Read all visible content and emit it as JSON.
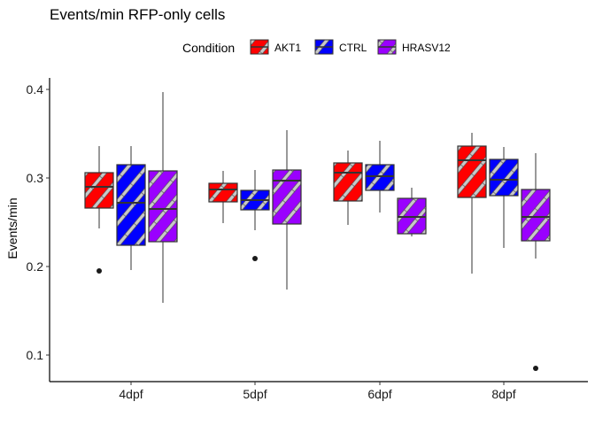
{
  "chart_data": {
    "type": "boxplot",
    "title": "Events/min RFP-only cells",
    "xlabel": "",
    "ylabel": "Events/min",
    "ylim": [
      0.07,
      0.41
    ],
    "yticks": [
      0.1,
      0.2,
      0.3,
      0.4
    ],
    "categories": [
      "4dpf",
      "5dpf",
      "6dpf",
      "8dpf"
    ],
    "legend": {
      "title": "Condition",
      "position": "top"
    },
    "series": [
      {
        "name": "AKT1",
        "color": "#FF0000",
        "boxes": [
          {
            "min": 0.243,
            "q1": 0.266,
            "median": 0.29,
            "q3": 0.306,
            "max": 0.336,
            "outliers": [
              0.195
            ]
          },
          {
            "min": 0.249,
            "q1": 0.273,
            "median": 0.287,
            "q3": 0.294,
            "max": 0.308,
            "outliers": []
          },
          {
            "min": 0.247,
            "q1": 0.274,
            "median": 0.306,
            "q3": 0.317,
            "max": 0.331,
            "outliers": []
          },
          {
            "min": 0.192,
            "q1": 0.278,
            "median": 0.32,
            "q3": 0.336,
            "max": 0.351,
            "outliers": []
          }
        ]
      },
      {
        "name": "CTRL",
        "color": "#0000FF",
        "boxes": [
          {
            "min": 0.196,
            "q1": 0.224,
            "median": 0.272,
            "q3": 0.315,
            "max": 0.336,
            "outliers": []
          },
          {
            "min": 0.241,
            "q1": 0.264,
            "median": 0.275,
            "q3": 0.286,
            "max": 0.309,
            "outliers": [
              0.209
            ]
          },
          {
            "min": 0.261,
            "q1": 0.286,
            "median": 0.302,
            "q3": 0.315,
            "max": 0.342,
            "outliers": []
          },
          {
            "min": 0.221,
            "q1": 0.28,
            "median": 0.298,
            "q3": 0.321,
            "max": 0.335,
            "outliers": []
          }
        ]
      },
      {
        "name": "HRASV12",
        "color": "#9A00FF",
        "boxes": [
          {
            "min": 0.159,
            "q1": 0.228,
            "median": 0.265,
            "q3": 0.308,
            "max": 0.397,
            "outliers": []
          },
          {
            "min": 0.174,
            "q1": 0.248,
            "median": 0.297,
            "q3": 0.309,
            "max": 0.354,
            "outliers": []
          },
          {
            "min": 0.234,
            "q1": 0.237,
            "median": 0.256,
            "q3": 0.277,
            "max": 0.289,
            "outliers": []
          },
          {
            "min": 0.209,
            "q1": 0.229,
            "median": 0.256,
            "q3": 0.287,
            "max": 0.328,
            "outliers": [
              0.085
            ]
          }
        ]
      }
    ],
    "grid": false
  }
}
